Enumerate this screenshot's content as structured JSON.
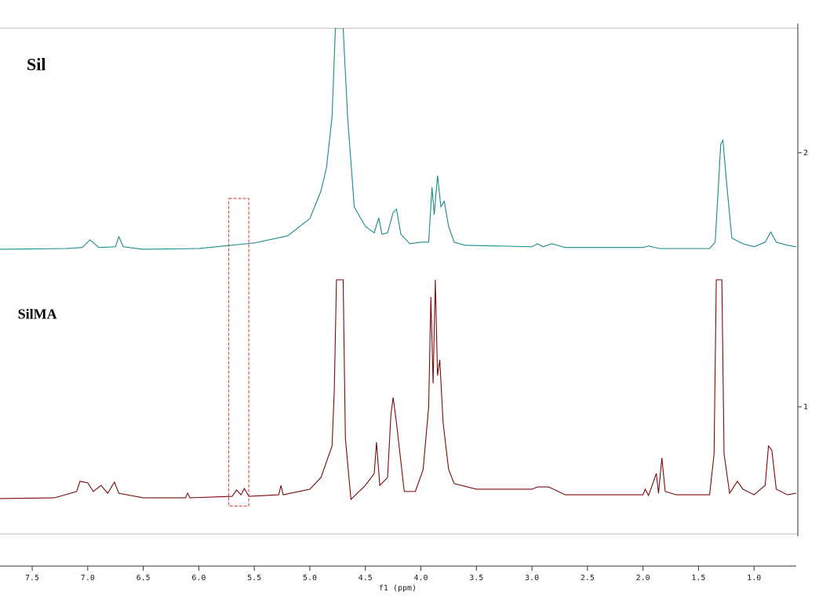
{
  "chart_data": {
    "type": "line",
    "xlabel": "f1 (ppm)",
    "xlim": [
      7.79,
      0.62
    ],
    "ylim": [
      0.5,
      2.49
    ],
    "xticks": [
      7.5,
      {
        "value": 7,
        "label": "7.0"
      },
      6.5,
      {
        "value": 6,
        "label": "6.0"
      },
      5.5,
      {
        "value": 5,
        "label": "5.0"
      },
      4.5,
      {
        "value": 4,
        "label": "4.0"
      },
      3.5,
      {
        "value": 3,
        "label": "3.0"
      },
      2.5,
      {
        "value": 2,
        "label": "2.0"
      },
      1.5,
      {
        "value": 1,
        "label": "1.0"
      }
    ],
    "yticks": [
      1,
      2
    ],
    "annotations": [
      {
        "text": "Sil",
        "x": 7.55,
        "y": 2.34
      },
      {
        "text": "SilMA",
        "x": 7.63,
        "y": 1.36
      }
    ],
    "highlight": {
      "color": "#e03030",
      "xrange": [
        5.73,
        5.55
      ],
      "yrange": [
        0.61,
        1.82
      ]
    },
    "series": [
      {
        "name": "Sil",
        "color": "#1a8a8a",
        "x": [
          7.79,
          7.2,
          7.05,
          6.98,
          6.9,
          6.75,
          6.72,
          6.68,
          6.5,
          6.0,
          5.5,
          5.2,
          5.0,
          4.9,
          4.85,
          4.8,
          4.77,
          4.7,
          4.66,
          4.6,
          4.5,
          4.42,
          4.38,
          4.35,
          4.3,
          4.25,
          4.22,
          4.18,
          4.1,
          4.0,
          3.93,
          3.9,
          3.88,
          3.85,
          3.82,
          3.79,
          3.75,
          3.7,
          3.6,
          3.0,
          2.95,
          2.9,
          2.82,
          2.7,
          2.0,
          1.95,
          1.85,
          1.4,
          1.35,
          1.3,
          1.28,
          1.25,
          1.2,
          1.1,
          1.0,
          0.9,
          0.85,
          0.8,
          0.7,
          0.62
        ],
        "values": [
          1.62,
          1.623,
          1.627,
          1.657,
          1.627,
          1.63,
          1.67,
          1.63,
          1.62,
          1.623,
          1.645,
          1.673,
          1.741,
          1.849,
          1.941,
          2.142,
          2.49,
          2.49,
          2.142,
          1.787,
          1.71,
          1.685,
          1.744,
          1.679,
          1.685,
          1.765,
          1.778,
          1.679,
          1.642,
          1.648,
          1.648,
          1.864,
          1.756,
          1.91,
          1.787,
          1.809,
          1.71,
          1.648,
          1.636,
          1.63,
          1.642,
          1.63,
          1.642,
          1.627,
          1.627,
          1.633,
          1.623,
          1.623,
          1.648,
          2.034,
          2.049,
          1.895,
          1.664,
          1.642,
          1.63,
          1.648,
          1.688,
          1.648,
          1.636,
          1.63
        ]
      },
      {
        "name": "SilMA",
        "color": "#7a0a0a",
        "x": [
          7.79,
          7.3,
          7.1,
          7.07,
          7.0,
          6.95,
          6.88,
          6.82,
          6.76,
          6.72,
          6.5,
          6.12,
          6.1,
          6.08,
          5.7,
          5.66,
          5.62,
          5.59,
          5.55,
          5.28,
          5.26,
          5.24,
          5.0,
          4.9,
          4.8,
          4.78,
          4.76,
          4.7,
          4.68,
          4.63,
          4.5,
          4.42,
          4.4,
          4.37,
          4.3,
          4.27,
          4.25,
          4.22,
          4.15,
          4.05,
          3.98,
          3.93,
          3.91,
          3.89,
          3.87,
          3.85,
          3.83,
          3.8,
          3.75,
          3.7,
          3.5,
          3.0,
          2.95,
          2.85,
          2.7,
          2.0,
          1.98,
          1.95,
          1.88,
          1.86,
          1.83,
          1.8,
          1.7,
          1.4,
          1.36,
          1.34,
          1.29,
          1.27,
          1.22,
          1.15,
          1.1,
          1.0,
          0.9,
          0.87,
          0.84,
          0.8,
          0.7,
          0.62
        ],
        "values": [
          0.639,
          0.642,
          0.667,
          0.707,
          0.701,
          0.667,
          0.691,
          0.66,
          0.704,
          0.66,
          0.642,
          0.642,
          0.66,
          0.642,
          0.648,
          0.673,
          0.654,
          0.679,
          0.648,
          0.654,
          0.691,
          0.654,
          0.676,
          0.722,
          0.846,
          1.062,
          1.5,
          1.5,
          0.877,
          0.636,
          0.691,
          0.738,
          0.861,
          0.691,
          0.722,
          0.969,
          1.037,
          0.938,
          0.667,
          0.667,
          0.753,
          1.0,
          1.432,
          1.093,
          1.5,
          1.123,
          1.185,
          0.938,
          0.753,
          0.698,
          0.676,
          0.676,
          0.685,
          0.685,
          0.654,
          0.654,
          0.676,
          0.651,
          0.738,
          0.66,
          0.799,
          0.667,
          0.654,
          0.654,
          0.815,
          1.5,
          1.5,
          0.815,
          0.66,
          0.707,
          0.676,
          0.654,
          0.691,
          0.846,
          0.83,
          0.676,
          0.654,
          0.66
        ]
      }
    ]
  }
}
